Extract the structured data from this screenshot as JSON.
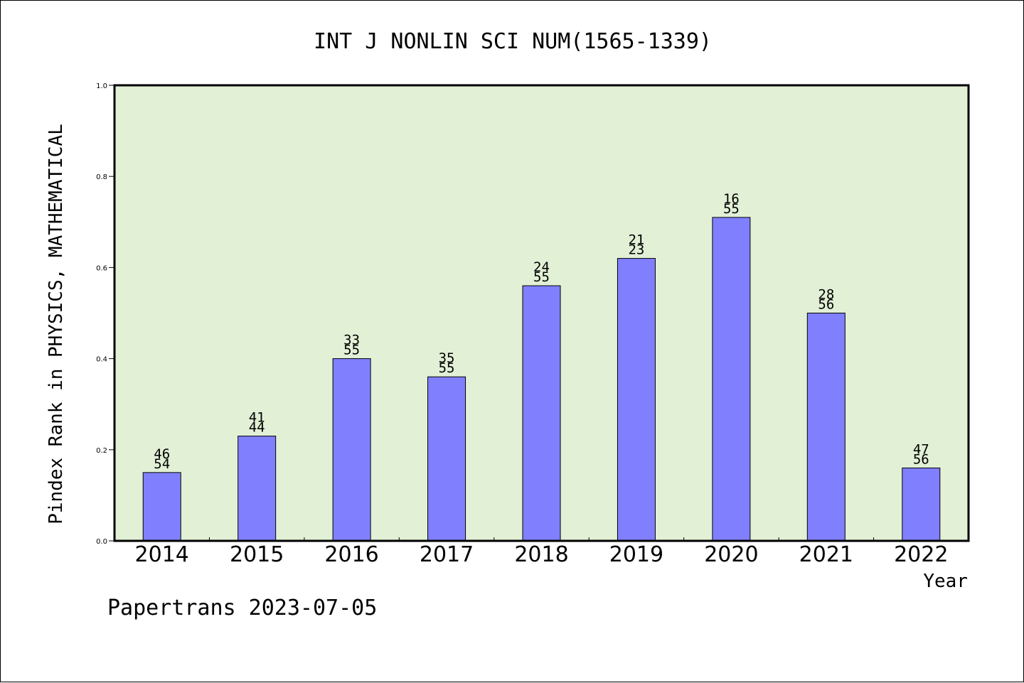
{
  "chart_data": {
    "type": "bar",
    "title": "INT J NONLIN SCI NUM(1565-1339)",
    "xlabel": "Year",
    "ylabel": "Pindex Rank in PHYSICS, MATHEMATICAL",
    "footer": "Papertrans 2023-07-05",
    "categories": [
      "2014",
      "2015",
      "2016",
      "2017",
      "2018",
      "2019",
      "2020",
      "2021",
      "2022"
    ],
    "values": [
      0.15,
      0.23,
      0.4,
      0.36,
      0.56,
      0.62,
      0.71,
      0.5,
      0.16
    ],
    "label_top": [
      "46",
      "41",
      "33",
      "35",
      "24",
      "21",
      "16",
      "28",
      "47"
    ],
    "label_bottom": [
      "54",
      "44",
      "55",
      "55",
      "55",
      "23",
      "55",
      "56",
      "56"
    ],
    "ylim": [
      0,
      1.0
    ],
    "yticks": [
      "0.0",
      "0.2",
      "0.4",
      "0.6",
      "0.8",
      "1.0"
    ],
    "grid": false,
    "colors": {
      "plot_bg": "#e2f0d6",
      "bar": "#8080ff",
      "border": "#000000"
    }
  }
}
